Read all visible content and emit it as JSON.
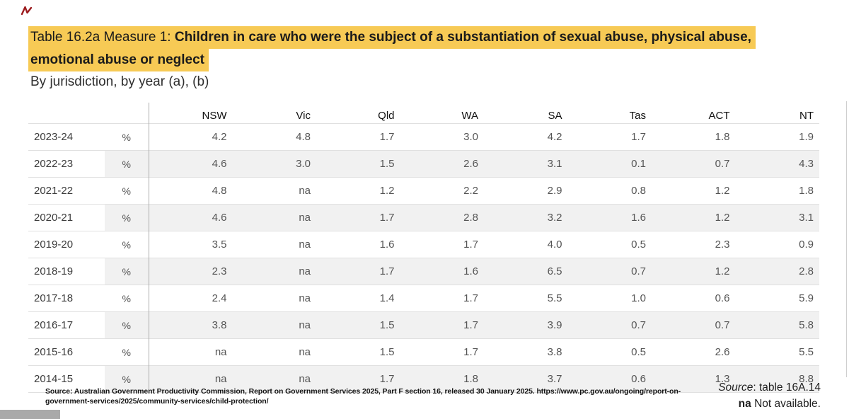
{
  "title": {
    "prefix": "Table 16.2a Measure 1: ",
    "bold_line1": "Children in care who were the subject of a substantiation of sexual abuse, physical abuse,",
    "bold_line2": "emotional abuse or neglect",
    "highlight_color": "#F7CA55"
  },
  "subtitle": "By jurisdiction, by year (a), (b)",
  "chart_data": {
    "type": "table",
    "title": "Table 16.2a Measure 1: Children in care who were the subject of a substantiation of sexual abuse, physical abuse, emotional abuse or neglect",
    "subtitle": "By jurisdiction, by year (a), (b)",
    "unit_label": "%",
    "columns": [
      "NSW",
      "Vic",
      "Qld",
      "WA",
      "SA",
      "Tas",
      "ACT",
      "NT"
    ],
    "rows": [
      {
        "year": "2023-24",
        "unit": "%",
        "values": [
          "4.2",
          "4.8",
          "1.7",
          "3.0",
          "4.2",
          "1.7",
          "1.8",
          "1.9"
        ]
      },
      {
        "year": "2022-23",
        "unit": "%",
        "values": [
          "4.6",
          "3.0",
          "1.5",
          "2.6",
          "3.1",
          "0.1",
          "0.7",
          "4.3"
        ]
      },
      {
        "year": "2021-22",
        "unit": "%",
        "values": [
          "4.8",
          "na",
          "1.2",
          "2.2",
          "2.9",
          "0.8",
          "1.2",
          "1.8"
        ]
      },
      {
        "year": "2020-21",
        "unit": "%",
        "values": [
          "4.6",
          "na",
          "1.7",
          "2.8",
          "3.2",
          "1.6",
          "1.2",
          "3.1"
        ]
      },
      {
        "year": "2019-20",
        "unit": "%",
        "values": [
          "3.5",
          "na",
          "1.6",
          "1.7",
          "4.0",
          "0.5",
          "2.3",
          "0.9"
        ]
      },
      {
        "year": "2018-19",
        "unit": "%",
        "values": [
          "2.3",
          "na",
          "1.7",
          "1.6",
          "6.5",
          "0.7",
          "1.2",
          "2.8"
        ]
      },
      {
        "year": "2017-18",
        "unit": "%",
        "values": [
          "2.4",
          "na",
          "1.4",
          "1.7",
          "5.5",
          "1.0",
          "0.6",
          "5.9"
        ]
      },
      {
        "year": "2016-17",
        "unit": "%",
        "values": [
          "3.8",
          "na",
          "1.5",
          "1.7",
          "3.9",
          "0.7",
          "0.7",
          "5.8"
        ]
      },
      {
        "year": "2015-16",
        "unit": "%",
        "values": [
          "na",
          "na",
          "1.5",
          "1.7",
          "3.8",
          "0.5",
          "2.6",
          "5.5"
        ]
      },
      {
        "year": "2014-15",
        "unit": "%",
        "values": [
          "na",
          "na",
          "1.7",
          "1.8",
          "3.7",
          "0.6",
          "1.3",
          "8.8"
        ]
      }
    ],
    "na_note": "na Not available."
  },
  "footer": {
    "footnote_line1": "Source: Australian Government Productivity Commission, Report on Government Services 2025, Part F section 16, released 30 January 2025. https://www.pc.gov.au/ongoing/report-on-",
    "footnote_line2": "government-services/2025/community-services/child-protection/",
    "source_ref_italic": "Source",
    "source_ref_rest": ": table 16A.14",
    "na_abbrev": "na",
    "na_rest": " Not available."
  },
  "decorations": {
    "annotation_mark_color": "#9C1B1E",
    "scrollbar_thumb_color": "#a9a9a9",
    "row_band_color": "#f1f1f1"
  }
}
